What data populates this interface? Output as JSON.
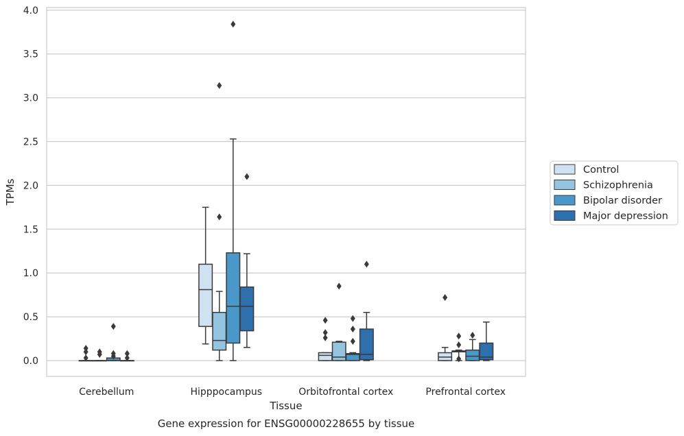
{
  "chart_data": {
    "type": "boxplot",
    "title": "",
    "caption": "Gene expression for ENSG00000228655 by tissue",
    "xlabel": "Tissue",
    "ylabel": "TPMs",
    "ylim": [
      -0.18,
      4.03
    ],
    "yticks": [
      0.0,
      0.5,
      1.0,
      1.5,
      2.0,
      2.5,
      3.0,
      3.5,
      4.0
    ],
    "ytick_labels": [
      "0.0",
      "0.5",
      "1.0",
      "1.5",
      "2.0",
      "2.5",
      "3.0",
      "3.5",
      "4.0"
    ],
    "grid": "horizontal",
    "legend_position": "right",
    "categories": [
      "Cerebellum",
      "Hipppocampus",
      "Orbitofrontal cortex",
      "Prefrontal cortex"
    ],
    "series": [
      {
        "name": "Control",
        "color": "#d0e1f2",
        "boxes": [
          {
            "whislo": 0.0,
            "q1": 0.0,
            "med": 0.0,
            "q3": 0.0,
            "whishi": 0.0,
            "fliers": [
              0.03,
              0.1,
              0.14
            ]
          },
          {
            "whislo": 0.19,
            "q1": 0.39,
            "med": 0.81,
            "q3": 1.1,
            "whishi": 1.75,
            "fliers": []
          },
          {
            "whislo": 0.0,
            "q1": 0.0,
            "med": 0.06,
            "q3": 0.09,
            "whishi": 0.09,
            "fliers": [
              0.26,
              0.32,
              0.46
            ]
          },
          {
            "whislo": 0.0,
            "q1": 0.0,
            "med": 0.04,
            "q3": 0.09,
            "whishi": 0.15,
            "fliers": [
              0.72
            ]
          }
        ]
      },
      {
        "name": "Schizophrenia",
        "color": "#94c4df",
        "boxes": [
          {
            "whislo": 0.0,
            "q1": 0.0,
            "med": 0.0,
            "q3": 0.0,
            "whishi": 0.0,
            "fliers": [
              0.07,
              0.1
            ]
          },
          {
            "whislo": 0.0,
            "q1": 0.12,
            "med": 0.23,
            "q3": 0.55,
            "whishi": 0.79,
            "fliers": [
              1.64,
              3.14
            ]
          },
          {
            "whislo": 0.0,
            "q1": 0.0,
            "med": 0.04,
            "q3": 0.21,
            "whishi": 0.22,
            "fliers": [
              0.85
            ]
          },
          {
            "whislo": 0.0,
            "q1": 0.1,
            "med": 0.11,
            "q3": 0.11,
            "whishi": 0.12,
            "fliers": [
              0.02,
              0.18,
              0.28
            ]
          }
        ]
      },
      {
        "name": "Bipolar disorder",
        "color": "#4a98c9",
        "boxes": [
          {
            "whislo": 0.0,
            "q1": 0.0,
            "med": 0.0,
            "q3": 0.03,
            "whishi": 0.03,
            "fliers": [
              0.05,
              0.08,
              0.39
            ]
          },
          {
            "whislo": 0.0,
            "q1": 0.2,
            "med": 0.62,
            "q3": 1.23,
            "whishi": 2.53,
            "fliers": [
              3.84
            ]
          },
          {
            "whislo": 0.0,
            "q1": 0.0,
            "med": 0.07,
            "q3": 0.08,
            "whishi": 0.09,
            "fliers": [
              0.22,
              0.36,
              0.48
            ]
          },
          {
            "whislo": 0.0,
            "q1": 0.0,
            "med": 0.05,
            "q3": 0.12,
            "whishi": 0.24,
            "fliers": [
              0.29
            ]
          }
        ]
      },
      {
        "name": "Major depression",
        "color": "#2e6fad",
        "boxes": [
          {
            "whislo": 0.0,
            "q1": 0.0,
            "med": 0.0,
            "q3": 0.0,
            "whishi": 0.0,
            "fliers": [
              0.03,
              0.08
            ]
          },
          {
            "whislo": 0.15,
            "q1": 0.34,
            "med": 0.62,
            "q3": 0.84,
            "whishi": 1.22,
            "fliers": [
              2.1
            ]
          },
          {
            "whislo": 0.0,
            "q1": 0.01,
            "med": 0.07,
            "q3": 0.36,
            "whishi": 0.55,
            "fliers": [
              1.1
            ]
          },
          {
            "whislo": 0.0,
            "q1": 0.01,
            "med": 0.04,
            "q3": 0.2,
            "whishi": 0.44,
            "fliers": []
          }
        ]
      }
    ]
  }
}
